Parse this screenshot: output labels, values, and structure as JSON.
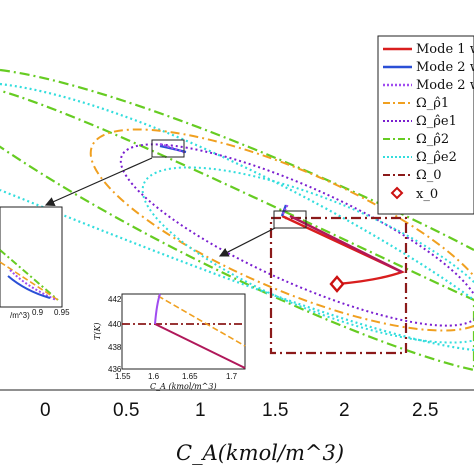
{
  "chart_data": {
    "type": "line",
    "xlabel": "C_A(kmol/m^3)",
    "xticks": [
      "0",
      "0.5",
      "1",
      "1.5",
      "2",
      "2.5"
    ],
    "legend": [
      {
        "label": "Mode 1 w",
        "color": "#d91e1e",
        "style": "solid"
      },
      {
        "label": "Mode 2 w",
        "color": "#2a4fd6",
        "style": "solid"
      },
      {
        "label": "Mode 2 w",
        "color": "#a04cf0",
        "style": "dotted"
      },
      {
        "label": "Ω_ρ̂1",
        "color": "#f0a020",
        "style": "dashdot"
      },
      {
        "label": "Ω_ρ̂e1",
        "color": "#7a1fd0",
        "style": "dotted"
      },
      {
        "label": "Ω_ρ̂2",
        "color": "#66cc22",
        "style": "dashdot"
      },
      {
        "label": "Ω_ρ̂e2",
        "color": "#33dddd",
        "style": "dotted"
      },
      {
        "label": "Ω_0",
        "color": "#8b1a1a",
        "style": "dashdot"
      },
      {
        "label": "x_0",
        "color": "#cc1111",
        "style": "marker"
      }
    ],
    "x0": {
      "x": 1.95,
      "y": 0.0
    },
    "inset_right": {
      "xticks": [
        "1.55",
        "1.6",
        "1.65",
        "1.7"
      ],
      "yticks": [
        "442",
        "440",
        "438",
        "436"
      ],
      "xlabel": "C_A (kmol/m^3)",
      "ylabel": "T(K)"
    },
    "inset_left": {
      "xticks": [
        "0.9",
        "0.95"
      ],
      "xlabel": "/m^3)"
    }
  }
}
